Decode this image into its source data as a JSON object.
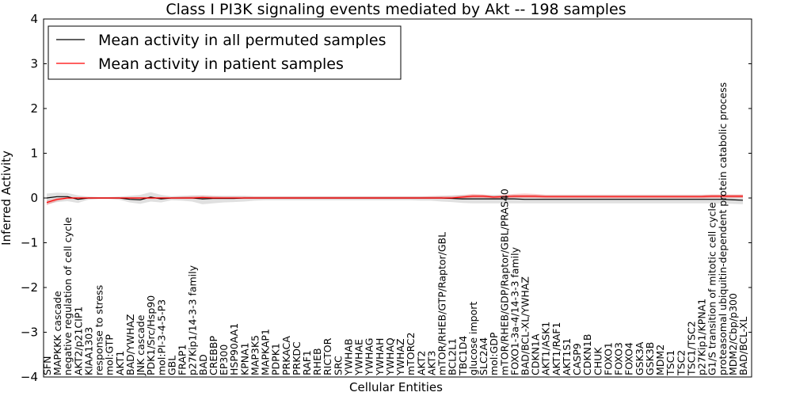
{
  "chart_data": {
    "type": "line",
    "title": "Class I PI3K signaling events mediated by Akt -- 198 samples",
    "xlabel": "Cellular Entities",
    "ylabel": "Inferred Activity",
    "ylim": [
      -4,
      4
    ],
    "yticks": [
      -4,
      -3,
      -2,
      -1,
      0,
      1,
      2,
      3,
      4
    ],
    "ytick_labels": [
      "−4",
      "−3",
      "−2",
      "−1",
      "0",
      "1",
      "2",
      "3",
      "4"
    ],
    "legend_position": "top-left",
    "categories": [
      "SFN",
      "MAPKKK cascade",
      "negative regulation of cell cycle",
      "AKT2/p21CIP1",
      "KIAA1303",
      "response to stress",
      "mol:GTP",
      "AKT1",
      "BAD/YWHAZ",
      "JNK cascade",
      "PDK1/Src/Hsp90",
      "mol:PI-3-4-5-P3",
      "GBL",
      "FRAP1",
      "p27Kip1/14-3-3 family",
      "BAD",
      "CREBBP",
      "EP300",
      "HSP90AA1",
      "KPNA1",
      "MAP3K5",
      "MAPKAP1",
      "PDPK1",
      "PRKACA",
      "PRKDC",
      "RAF1",
      "RHEB",
      "RICTOR",
      "SRC",
      "YWHAB",
      "YWHAE",
      "YWHAG",
      "YWHAH",
      "YWHAQ",
      "YWHAZ",
      "mTORC2",
      "AKT2",
      "AKT3",
      "mTOR/RHEB/GTP/Raptor/GBL",
      "BCL2L1",
      "TBC1D4",
      "glucose import",
      "SLC2A4",
      "mol:GDP",
      "mTOR/RHEB/GDP/Raptor/GBL/PRAS40",
      "FOXO1-3a-4/14-3-3 family",
      "BAD/BCL-XL/YWHAZ",
      "CDKN1A",
      "AKT1/ASK1",
      "AKT1/RAF1",
      "AKT1S1",
      "CASP9",
      "CDKN1B",
      "CHUK",
      "FOXO1",
      "FOXO3",
      "FOXO4",
      "GSK3A",
      "GSK3B",
      "MDM2",
      "TSC1",
      "TSC2",
      "TSC1/TSC2",
      "p27Kip1/KPNA1",
      "G1/S transition of mitotic cell cycle",
      "proteasomal ubiquitin-dependent protein catabolic process",
      "MDM2/Cbp/p300",
      "BAD/BCL-XL"
    ],
    "series": [
      {
        "name": "Mean activity in all permuted samples",
        "color": "#000000",
        "values": [
          0.0,
          0.03,
          0.03,
          -0.03,
          0.0,
          0.0,
          0.0,
          0.0,
          -0.03,
          -0.04,
          0.02,
          -0.02,
          0.0,
          0.0,
          0.0,
          -0.02,
          -0.01,
          -0.01,
          -0.01,
          0.0,
          0.0,
          0.0,
          0.0,
          0.0,
          0.0,
          0.0,
          0.0,
          0.0,
          0.0,
          0.0,
          0.0,
          0.0,
          0.0,
          0.0,
          0.0,
          0.0,
          0.0,
          0.0,
          0.0,
          -0.01,
          -0.02,
          -0.02,
          -0.02,
          -0.02,
          -0.02,
          -0.02,
          -0.03,
          -0.03,
          -0.03,
          -0.03,
          -0.03,
          -0.03,
          -0.03,
          -0.03,
          -0.03,
          -0.03,
          -0.03,
          -0.03,
          -0.03,
          -0.03,
          -0.03,
          -0.03,
          -0.03,
          -0.03,
          -0.03,
          -0.03,
          -0.04,
          -0.05
        ],
        "band_upper": [
          0.1,
          0.12,
          0.11,
          0.06,
          0.03,
          0.02,
          0.02,
          0.03,
          0.05,
          0.07,
          0.13,
          0.07,
          0.04,
          0.05,
          0.06,
          0.06,
          0.05,
          0.05,
          0.05,
          0.05,
          0.04,
          0.04,
          0.04,
          0.04,
          0.04,
          0.04,
          0.04,
          0.04,
          0.04,
          0.04,
          0.04,
          0.04,
          0.04,
          0.04,
          0.04,
          0.04,
          0.04,
          0.04,
          0.05,
          0.06,
          0.07,
          0.07,
          0.07,
          0.07,
          0.07,
          0.07,
          0.07,
          0.07,
          0.07,
          0.07,
          0.07,
          0.07,
          0.07,
          0.07,
          0.07,
          0.07,
          0.07,
          0.07,
          0.07,
          0.07,
          0.07,
          0.07,
          0.07,
          0.07,
          0.07,
          0.07,
          0.07,
          0.07
        ],
        "band_lower": [
          -0.14,
          -0.09,
          -0.07,
          -0.11,
          -0.04,
          -0.02,
          -0.02,
          -0.04,
          -0.1,
          -0.13,
          -0.08,
          -0.1,
          -0.05,
          -0.06,
          -0.08,
          -0.14,
          -0.12,
          -0.1,
          -0.09,
          -0.08,
          -0.06,
          -0.05,
          -0.05,
          -0.05,
          -0.05,
          -0.05,
          -0.05,
          -0.05,
          -0.05,
          -0.05,
          -0.05,
          -0.05,
          -0.05,
          -0.05,
          -0.05,
          -0.05,
          -0.06,
          -0.06,
          -0.08,
          -0.09,
          -0.11,
          -0.12,
          -0.12,
          -0.12,
          -0.12,
          -0.12,
          -0.12,
          -0.12,
          -0.12,
          -0.12,
          -0.12,
          -0.12,
          -0.12,
          -0.12,
          -0.12,
          -0.12,
          -0.12,
          -0.12,
          -0.12,
          -0.12,
          -0.12,
          -0.12,
          -0.12,
          -0.12,
          -0.12,
          -0.12,
          -0.13,
          -0.14
        ]
      },
      {
        "name": "Mean activity in patient samples",
        "color": "#ff0000",
        "values": [
          -0.1,
          -0.03,
          0.0,
          0.0,
          0.0,
          0.0,
          0.0,
          0.0,
          0.0,
          0.0,
          0.0,
          0.0,
          0.0,
          0.0,
          0.0,
          0.01,
          0.0,
          0.0,
          0.0,
          0.0,
          0.0,
          0.0,
          0.0,
          0.0,
          0.0,
          0.0,
          0.0,
          0.0,
          0.0,
          0.0,
          0.0,
          0.0,
          0.0,
          0.0,
          0.0,
          0.0,
          0.0,
          0.0,
          0.0,
          0.0,
          0.02,
          0.04,
          0.04,
          0.02,
          0.03,
          0.04,
          0.04,
          0.04,
          0.03,
          0.03,
          0.03,
          0.03,
          0.03,
          0.03,
          0.03,
          0.03,
          0.03,
          0.03,
          0.03,
          0.03,
          0.03,
          0.03,
          0.03,
          0.03,
          0.04,
          0.04,
          0.04,
          0.04
        ],
        "band_upper": [
          -0.06,
          0.0,
          0.02,
          0.02,
          0.02,
          0.02,
          0.02,
          0.02,
          0.02,
          0.02,
          0.02,
          0.02,
          0.02,
          0.03,
          0.04,
          0.05,
          0.04,
          0.03,
          0.03,
          0.03,
          0.03,
          0.03,
          0.03,
          0.03,
          0.03,
          0.03,
          0.03,
          0.03,
          0.03,
          0.03,
          0.03,
          0.03,
          0.03,
          0.03,
          0.03,
          0.03,
          0.03,
          0.04,
          0.04,
          0.04,
          0.06,
          0.09,
          0.08,
          0.05,
          0.07,
          0.09,
          0.1,
          0.09,
          0.07,
          0.07,
          0.07,
          0.07,
          0.07,
          0.07,
          0.07,
          0.07,
          0.07,
          0.07,
          0.07,
          0.07,
          0.07,
          0.07,
          0.07,
          0.07,
          0.08,
          0.08,
          0.08,
          0.08
        ],
        "band_lower": [
          -0.16,
          -0.07,
          -0.02,
          -0.02,
          -0.02,
          -0.02,
          -0.02,
          -0.02,
          -0.02,
          -0.02,
          -0.02,
          -0.02,
          -0.02,
          -0.02,
          -0.02,
          -0.02,
          -0.02,
          -0.02,
          -0.02,
          -0.02,
          -0.02,
          -0.02,
          -0.02,
          -0.02,
          -0.02,
          -0.02,
          -0.02,
          -0.02,
          -0.02,
          -0.02,
          -0.02,
          -0.02,
          -0.02,
          -0.02,
          -0.02,
          -0.02,
          -0.02,
          -0.02,
          -0.02,
          -0.02,
          -0.01,
          0.0,
          0.0,
          -0.01,
          -0.01,
          0.0,
          0.0,
          0.0,
          -0.01,
          -0.01,
          -0.01,
          -0.01,
          -0.01,
          -0.01,
          -0.01,
          -0.01,
          -0.01,
          -0.01,
          -0.01,
          -0.01,
          -0.01,
          -0.01,
          -0.01,
          -0.01,
          0.0,
          0.0,
          0.0,
          0.0
        ]
      }
    ]
  }
}
